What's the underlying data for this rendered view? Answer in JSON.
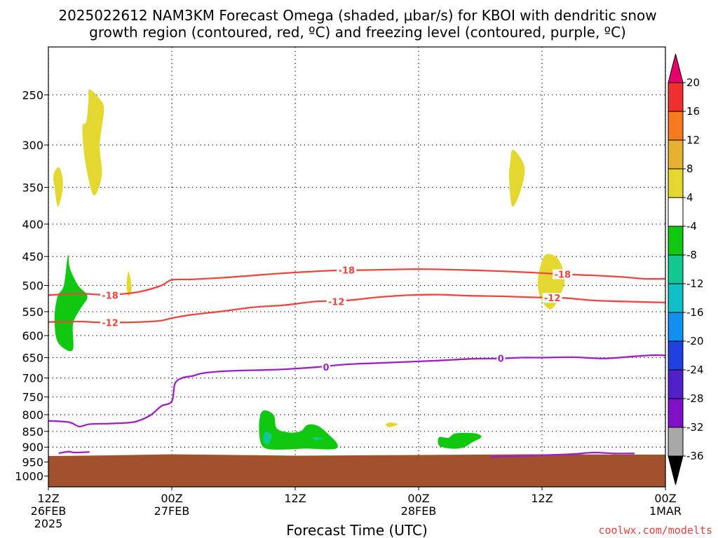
{
  "title": {
    "line1": "2025022612 NAM3KM Forecast Omega (shaded, μbar/s) for KBOI with dendritic snow",
    "line2": "growth region (contoured, red, ºC) and freezing level (contoured, purple, ºC)"
  },
  "credit": "coolwx.com/modelts",
  "chart_data": {
    "type": "time-pressure cross section",
    "xlabel": "Forecast Time (UTC)",
    "ylabel": "",
    "x_range_hours": [
      0,
      60
    ],
    "ylim_hPa": [
      1040,
      210
    ],
    "y_scale": "log",
    "grid": "dotted",
    "y_ticks": [
      250,
      300,
      350,
      400,
      450,
      500,
      550,
      600,
      650,
      700,
      750,
      800,
      850,
      900,
      950,
      1000
    ],
    "x_ticks": [
      {
        "hour": 0,
        "line1": "12Z",
        "line2": "26FEB",
        "line3": "2025"
      },
      {
        "hour": 12,
        "line1": "00Z",
        "line2": "27FEB",
        "line3": ""
      },
      {
        "hour": 24,
        "line1": "12Z",
        "line2": "",
        "line3": ""
      },
      {
        "hour": 36,
        "line1": "00Z",
        "line2": "28FEB",
        "line3": ""
      },
      {
        "hour": 48,
        "line1": "12Z",
        "line2": "",
        "line3": ""
      },
      {
        "hour": 60,
        "line1": "00Z",
        "line2": "1MAR",
        "line3": ""
      }
    ],
    "colorbar": {
      "labels": [
        "20",
        "16",
        "12",
        "8",
        "4",
        "-4",
        "-8",
        "-12",
        "-16",
        "-20",
        "-24",
        "-28",
        "-32",
        "-36"
      ],
      "colors": [
        "#e8006a",
        "#f03030",
        "#f57a20",
        "#e8b030",
        "#e4d830",
        "#ffffff",
        "#10c810",
        "#10c890",
        "#10c0c8",
        "#1090f0",
        "#2040e0",
        "#5020c8",
        "#8010c8",
        "#a8a8a8",
        "#000000"
      ]
    },
    "contours": [
      {
        "name": "-18",
        "color": "#f0453c",
        "label": "-18",
        "points": [
          [
            0,
            518
          ],
          [
            3,
            515
          ],
          [
            5,
            517
          ],
          [
            7,
            516
          ],
          [
            9,
            511
          ],
          [
            11,
            500
          ],
          [
            12,
            490
          ],
          [
            14,
            489
          ],
          [
            17,
            486
          ],
          [
            20,
            482
          ],
          [
            23,
            478
          ],
          [
            27,
            474
          ],
          [
            30,
            473
          ],
          [
            33,
            472
          ],
          [
            36,
            471
          ],
          [
            39,
            472
          ],
          [
            43,
            474
          ],
          [
            47,
            477
          ],
          [
            50,
            480
          ],
          [
            53,
            482
          ],
          [
            56,
            485
          ],
          [
            58,
            488
          ],
          [
            60,
            488
          ]
        ],
        "labels_at": [
          [
            6,
            518
          ],
          [
            29,
            473
          ],
          [
            50,
            480
          ]
        ]
      },
      {
        "name": "-12",
        "color": "#f0453c",
        "label": "-12",
        "points": [
          [
            0,
            571
          ],
          [
            3,
            570
          ],
          [
            5,
            572
          ],
          [
            7,
            572
          ],
          [
            9,
            571
          ],
          [
            11,
            568
          ],
          [
            12,
            563
          ],
          [
            14,
            556
          ],
          [
            17,
            549
          ],
          [
            20,
            541
          ],
          [
            23,
            537
          ],
          [
            26,
            530
          ],
          [
            29,
            528
          ],
          [
            32,
            522
          ],
          [
            35,
            518
          ],
          [
            38,
            517
          ],
          [
            41,
            519
          ],
          [
            44,
            520
          ],
          [
            47,
            522
          ],
          [
            50,
            523
          ],
          [
            53,
            528
          ],
          [
            56,
            530
          ],
          [
            60,
            532
          ]
        ],
        "labels_at": [
          [
            6,
            572
          ],
          [
            28,
            530
          ],
          [
            49,
            523
          ]
        ]
      },
      {
        "name": "0",
        "color": "#a020c8",
        "label": "0",
        "points": [
          [
            0,
            818
          ],
          [
            2,
            822
          ],
          [
            3,
            835
          ],
          [
            4,
            828
          ],
          [
            6,
            826
          ],
          [
            8,
            823
          ],
          [
            9,
            815
          ],
          [
            10,
            800
          ],
          [
            11,
            775
          ],
          [
            12,
            762
          ],
          [
            12.3,
            715
          ],
          [
            13,
            700
          ],
          [
            14,
            695
          ],
          [
            15,
            688
          ],
          [
            17,
            683
          ],
          [
            19,
            681
          ],
          [
            21,
            680
          ],
          [
            23,
            678
          ],
          [
            26,
            673
          ],
          [
            29,
            666
          ],
          [
            32,
            663
          ],
          [
            35,
            660
          ],
          [
            38,
            657
          ],
          [
            41,
            653
          ],
          [
            44,
            652
          ],
          [
            46,
            650
          ],
          [
            48,
            650
          ],
          [
            51,
            649
          ],
          [
            54,
            652
          ],
          [
            57,
            647
          ],
          [
            59,
            644
          ],
          [
            60,
            645
          ]
        ],
        "labels_at": [
          [
            27,
            673
          ],
          [
            44,
            652
          ]
        ]
      },
      {
        "name": "0-low-right",
        "color": "#a020c8",
        "label": "",
        "points": [
          [
            43,
            933
          ],
          [
            45,
            930
          ],
          [
            48,
            927
          ],
          [
            51,
            923
          ],
          [
            53,
            918
          ],
          [
            55,
            921
          ],
          [
            57,
            921
          ]
        ],
        "labels_at": []
      },
      {
        "name": "0-low-left",
        "color": "#a020c8",
        "label": "",
        "points": [
          [
            1,
            920
          ],
          [
            2,
            915
          ],
          [
            2.5,
            918
          ],
          [
            4,
            916
          ]
        ],
        "labels_at": []
      }
    ],
    "shaded_regions": [
      {
        "name": "omega-positive-4-to-8",
        "color": "#e4d830",
        "points": [
          [
            1,
            325
          ],
          [
            1.4,
            340
          ],
          [
            1.3,
            360
          ],
          [
            0.9,
            375
          ],
          [
            0.6,
            350
          ],
          [
            0.5,
            335
          ]
        ]
      },
      {
        "name": "omega-positive-4-to-8",
        "color": "#e4d830",
        "points": [
          [
            4,
            245
          ],
          [
            5.1,
            255
          ],
          [
            5.4,
            265
          ],
          [
            5,
            300
          ],
          [
            5.2,
            335
          ],
          [
            4.4,
            360
          ],
          [
            3.6,
            320
          ],
          [
            3.3,
            282
          ],
          [
            3.7,
            275
          ],
          [
            3.9,
            255
          ]
        ]
      },
      {
        "name": "omega-positive-4-to-8",
        "color": "#e4d830",
        "points": [
          [
            7.8,
            475
          ],
          [
            8.1,
            505
          ],
          [
            7.8,
            520
          ],
          [
            7.6,
            500
          ]
        ]
      },
      {
        "name": "omega-positive-4-to-8",
        "color": "#e4d830",
        "points": [
          [
            45.2,
            305
          ],
          [
            46.3,
            325
          ],
          [
            45.9,
            355
          ],
          [
            45.1,
            375
          ],
          [
            44.8,
            340
          ],
          [
            44.9,
            320
          ]
        ]
      },
      {
        "name": "omega-positive-4-to-8",
        "color": "#e4d830",
        "points": [
          [
            48.3,
            448
          ],
          [
            49.6,
            455
          ],
          [
            50.2,
            490
          ],
          [
            49.6,
            525
          ],
          [
            48.8,
            545
          ],
          [
            47.9,
            525
          ],
          [
            47.6,
            490
          ]
        ]
      },
      {
        "name": "omega-positive-4-to-8",
        "color": "#e4d830",
        "points": [
          [
            33.2,
            823
          ],
          [
            34,
            828
          ],
          [
            33.2,
            837
          ],
          [
            32.8,
            830
          ]
        ]
      },
      {
        "name": "omega-negative-4-to-8",
        "color": "#10c810",
        "points": [
          [
            1.9,
            448
          ],
          [
            2.1,
            470
          ],
          [
            2.9,
            500
          ],
          [
            3.8,
            520
          ],
          [
            3.1,
            545
          ],
          [
            2.4,
            575
          ],
          [
            2.4,
            630
          ],
          [
            1.6,
            630
          ],
          [
            0.8,
            608
          ],
          [
            0.6,
            560
          ],
          [
            0.9,
            520
          ],
          [
            1.5,
            500
          ]
        ]
      },
      {
        "name": "omega-negative-4-to-8",
        "color": "#10c810",
        "points": [
          [
            20.9,
            788
          ],
          [
            21.9,
            800
          ],
          [
            22.2,
            840
          ],
          [
            23.3,
            853
          ],
          [
            24.5,
            850
          ],
          [
            25.2,
            830
          ],
          [
            26.2,
            833
          ],
          [
            27.2,
            858
          ],
          [
            28.1,
            890
          ],
          [
            27.7,
            907
          ],
          [
            25,
            905
          ],
          [
            23,
            908
          ],
          [
            21.2,
            905
          ],
          [
            20.6,
            880
          ],
          [
            20.5,
            820
          ]
        ]
      },
      {
        "name": "omega-negative-4-to-8",
        "color": "#10c810",
        "points": [
          [
            38,
            868
          ],
          [
            38.9,
            870
          ],
          [
            39.6,
            856
          ],
          [
            41.5,
            856
          ],
          [
            42.1,
            868
          ],
          [
            41.2,
            885
          ],
          [
            40.3,
            902
          ],
          [
            39.1,
            905
          ],
          [
            38,
            895
          ]
        ]
      },
      {
        "name": "omega-negative-8-to-12",
        "color": "#10c890",
        "points": [
          [
            21.1,
            850
          ],
          [
            21.7,
            862
          ],
          [
            21.4,
            890
          ],
          [
            20.9,
            880
          ]
        ]
      },
      {
        "name": "omega-negative-8-to-12",
        "color": "#10c890",
        "points": [
          [
            25.7,
            868
          ],
          [
            26.8,
            872
          ],
          [
            26,
            878
          ]
        ]
      }
    ],
    "terrain": {
      "color": "#a0522d",
      "surface_pressure_hPa": 925
    }
  }
}
